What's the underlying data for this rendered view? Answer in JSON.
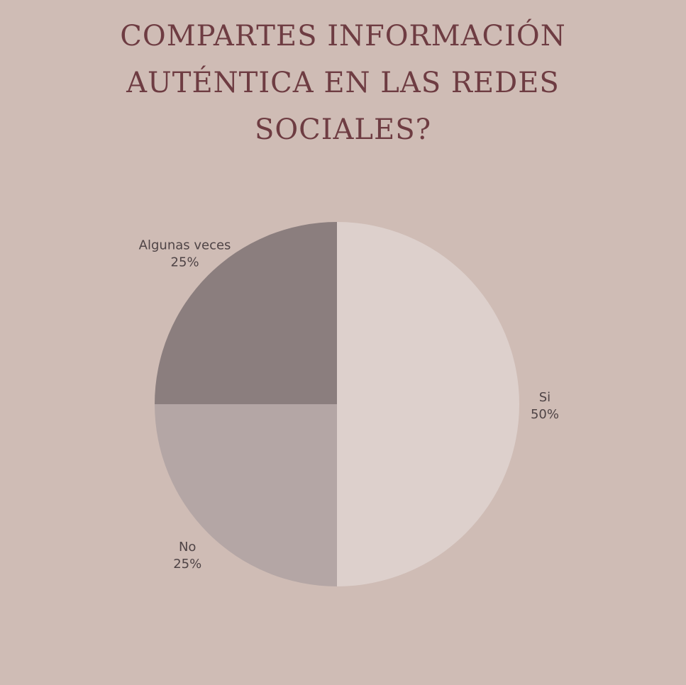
{
  "chart_data": {
    "type": "pie",
    "title_lines": [
      "COMPARTES INFORMACIÓN",
      "AUTÉNTICA EN LAS REDES",
      "SOCIALES?"
    ],
    "slices": [
      {
        "label": "Si",
        "value": 50,
        "value_label": "50%",
        "color": "#ddd0cc"
      },
      {
        "label": "No",
        "value": 25,
        "value_label": "25%",
        "color": "#b4a6a5"
      },
      {
        "label": "Algunas veces",
        "value": 25,
        "value_label": "25%",
        "color": "#8b7e7e"
      }
    ]
  },
  "colors": {
    "background": "#cfbcb5",
    "title": "#6e3c42",
    "label_text": "#4f4446"
  }
}
